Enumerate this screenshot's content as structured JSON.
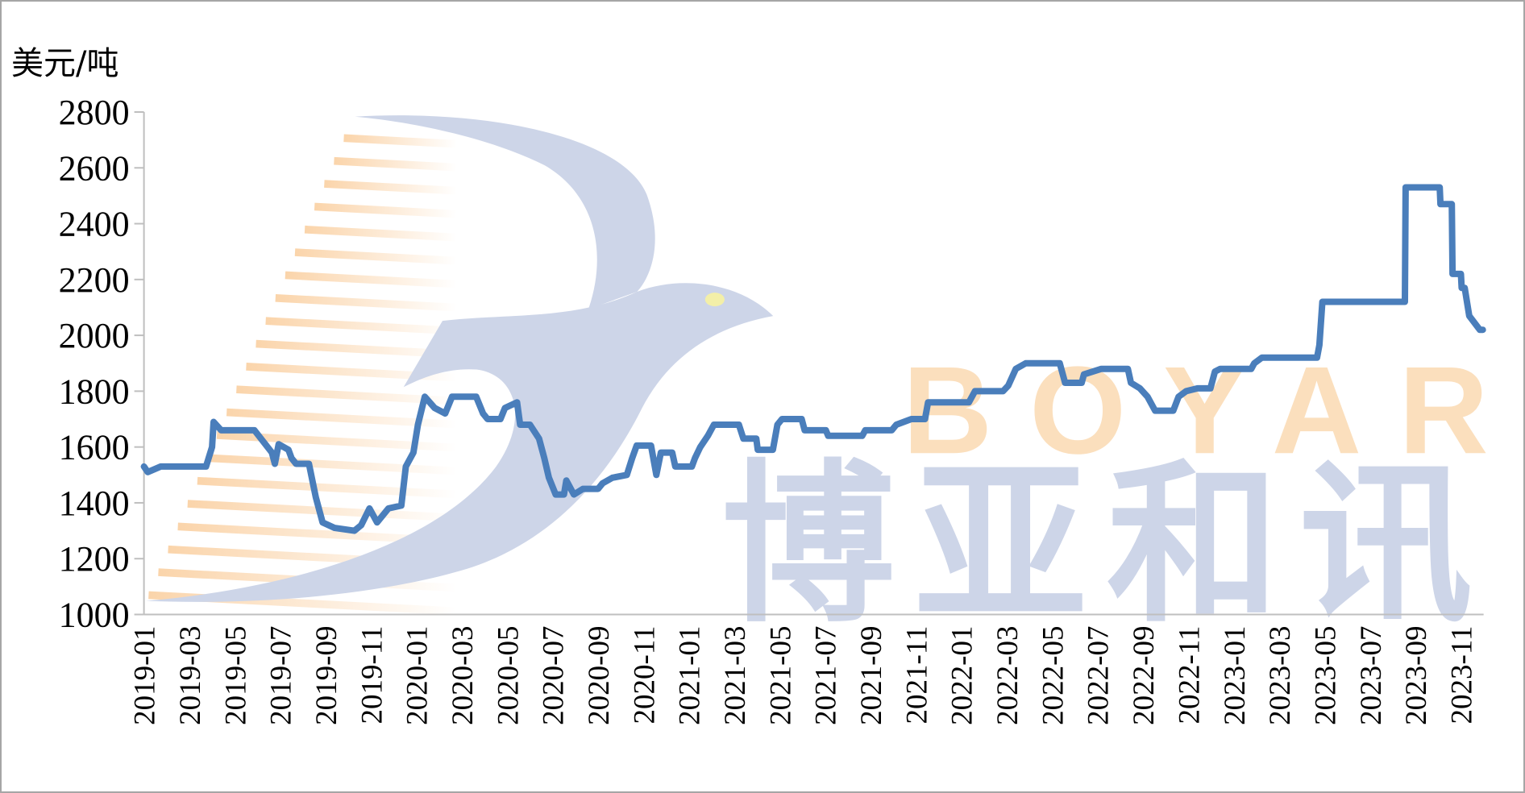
{
  "chart_data": {
    "type": "line",
    "title": "",
    "ylabel": "美元/吨",
    "xlabel": "",
    "ylim": [
      1000,
      2800
    ],
    "yticks": [
      1000,
      1200,
      1400,
      1600,
      1800,
      2000,
      2200,
      2400,
      2600,
      2800
    ],
    "xticks": [
      "2019-01",
      "2019-03",
      "2019-05",
      "2019-07",
      "2019-09",
      "2019-11",
      "2020-01",
      "2020-03",
      "2020-05",
      "2020-07",
      "2020-09",
      "2020-11",
      "2021-01",
      "2021-03",
      "2021-05",
      "2021-07",
      "2021-09",
      "2021-11",
      "2022-01",
      "2022-03",
      "2022-05",
      "2022-07",
      "2022-09",
      "2022-11",
      "2023-01",
      "2023-03",
      "2023-05",
      "2023-07",
      "2023-09",
      "2023-11"
    ],
    "grid": false,
    "legend": "none",
    "colors": {
      "line": "#4a7ebb",
      "axis": "#bfbfbf",
      "frame": "#a6a6a6"
    },
    "watermark": {
      "logo_text_en": "BOYAR",
      "logo_text_cn": "博亚和讯",
      "bird_color": "#cdd5e8",
      "stripe_color": "#fbdcb8",
      "eye_color": "#f3efa8"
    },
    "series": [
      {
        "points": [
          [
            "2019-01-01",
            1530
          ],
          [
            "2019-01-06",
            1510
          ],
          [
            "2019-01-23",
            1530
          ],
          [
            "2019-03-23",
            1530
          ],
          [
            "2019-04-01",
            1600
          ],
          [
            "2019-04-03",
            1690
          ],
          [
            "2019-04-13",
            1660
          ],
          [
            "2019-05-27",
            1660
          ],
          [
            "2019-06-20",
            1580
          ],
          [
            "2019-06-24",
            1540
          ],
          [
            "2019-06-29",
            1610
          ],
          [
            "2019-07-12",
            1590
          ],
          [
            "2019-07-16",
            1560
          ],
          [
            "2019-07-22",
            1540
          ],
          [
            "2019-08-09",
            1540
          ],
          [
            "2019-08-18",
            1420
          ],
          [
            "2019-08-27",
            1330
          ],
          [
            "2019-09-13",
            1310
          ],
          [
            "2019-10-09",
            1300
          ],
          [
            "2019-10-18",
            1320
          ],
          [
            "2019-10-29",
            1380
          ],
          [
            "2019-11-09",
            1330
          ],
          [
            "2019-11-24",
            1380
          ],
          [
            "2019-12-11",
            1390
          ],
          [
            "2019-12-17",
            1530
          ],
          [
            "2019-12-27",
            1580
          ],
          [
            "2020-01-03",
            1680
          ],
          [
            "2020-01-12",
            1780
          ],
          [
            "2020-01-25",
            1740
          ],
          [
            "2020-02-09",
            1720
          ],
          [
            "2020-02-18",
            1780
          ],
          [
            "2020-03-20",
            1780
          ],
          [
            "2020-03-29",
            1720
          ],
          [
            "2020-04-05",
            1700
          ],
          [
            "2020-04-22",
            1700
          ],
          [
            "2020-04-28",
            1740
          ],
          [
            "2020-05-14",
            1760
          ],
          [
            "2020-05-18",
            1680
          ],
          [
            "2020-06-01",
            1680
          ],
          [
            "2020-06-13",
            1630
          ],
          [
            "2020-06-20",
            1560
          ],
          [
            "2020-06-26",
            1490
          ],
          [
            "2020-07-05",
            1430
          ],
          [
            "2020-07-16",
            1430
          ],
          [
            "2020-07-19",
            1480
          ],
          [
            "2020-07-29",
            1430
          ],
          [
            "2020-08-11",
            1450
          ],
          [
            "2020-09-01",
            1450
          ],
          [
            "2020-09-07",
            1470
          ],
          [
            "2020-09-20",
            1490
          ],
          [
            "2020-10-09",
            1500
          ],
          [
            "2020-10-16",
            1560
          ],
          [
            "2020-10-22",
            1605
          ],
          [
            "2020-11-11",
            1605
          ],
          [
            "2020-11-18",
            1500
          ],
          [
            "2020-11-24",
            1580
          ],
          [
            "2020-12-09",
            1580
          ],
          [
            "2020-12-13",
            1530
          ],
          [
            "2021-01-05",
            1530
          ],
          [
            "2021-01-09",
            1560
          ],
          [
            "2021-01-16",
            1600
          ],
          [
            "2021-01-26",
            1640
          ],
          [
            "2021-02-04",
            1680
          ],
          [
            "2021-03-07",
            1680
          ],
          [
            "2021-03-13",
            1630
          ],
          [
            "2021-03-30",
            1630
          ],
          [
            "2021-04-02",
            1590
          ],
          [
            "2021-04-22",
            1590
          ],
          [
            "2021-04-28",
            1680
          ],
          [
            "2021-05-04",
            1700
          ],
          [
            "2021-05-30",
            1700
          ],
          [
            "2021-06-04",
            1660
          ],
          [
            "2021-07-02",
            1660
          ],
          [
            "2021-07-05",
            1640
          ],
          [
            "2021-08-20",
            1640
          ],
          [
            "2021-08-24",
            1660
          ],
          [
            "2021-09-29",
            1660
          ],
          [
            "2021-10-05",
            1680
          ],
          [
            "2021-10-25",
            1700
          ],
          [
            "2021-11-13",
            1700
          ],
          [
            "2021-11-17",
            1760
          ],
          [
            "2022-01-11",
            1760
          ],
          [
            "2022-01-19",
            1800
          ],
          [
            "2022-02-26",
            1800
          ],
          [
            "2022-03-03",
            1820
          ],
          [
            "2022-03-13",
            1880
          ],
          [
            "2022-03-26",
            1900
          ],
          [
            "2022-05-11",
            1900
          ],
          [
            "2022-05-18",
            1830
          ],
          [
            "2022-06-10",
            1830
          ],
          [
            "2022-06-13",
            1860
          ],
          [
            "2022-07-06",
            1880
          ],
          [
            "2022-08-11",
            1880
          ],
          [
            "2022-08-15",
            1830
          ],
          [
            "2022-08-27",
            1810
          ],
          [
            "2022-09-07",
            1780
          ],
          [
            "2022-09-17",
            1730
          ],
          [
            "2022-10-11",
            1730
          ],
          [
            "2022-10-18",
            1780
          ],
          [
            "2022-10-28",
            1800
          ],
          [
            "2022-11-13",
            1810
          ],
          [
            "2022-11-30",
            1810
          ],
          [
            "2022-12-06",
            1870
          ],
          [
            "2022-12-13",
            1880
          ],
          [
            "2023-01-24",
            1880
          ],
          [
            "2023-01-28",
            1900
          ],
          [
            "2023-02-08",
            1920
          ],
          [
            "2023-04-21",
            1920
          ],
          [
            "2023-04-24",
            1965
          ],
          [
            "2023-04-28",
            2120
          ],
          [
            "2023-08-17",
            2120
          ],
          [
            "2023-08-18",
            2530
          ],
          [
            "2023-10-03",
            2530
          ],
          [
            "2023-10-04",
            2470
          ],
          [
            "2023-10-19",
            2470
          ],
          [
            "2023-10-20",
            2220
          ],
          [
            "2023-11-01",
            2220
          ],
          [
            "2023-11-02",
            2170
          ],
          [
            "2023-11-06",
            2170
          ],
          [
            "2023-11-12",
            2070
          ],
          [
            "2023-11-26",
            2020
          ],
          [
            "2023-11-30",
            2020
          ]
        ]
      }
    ]
  }
}
